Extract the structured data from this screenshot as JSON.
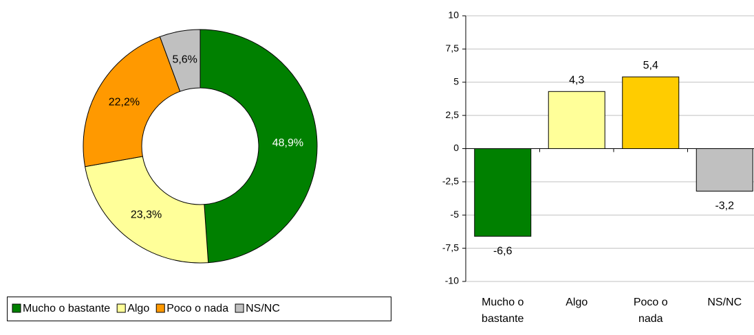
{
  "chart_data": [
    {
      "type": "donut",
      "categories": [
        "Mucho o bastante",
        "Algo",
        "Poco o nada",
        "NS/NC"
      ],
      "values": [
        48.9,
        23.3,
        22.2,
        5.6
      ],
      "value_labels": [
        "48,9%",
        "23,3%",
        "22,2%",
        "5,6%"
      ],
      "colors": [
        "#008000",
        "#ffff99",
        "#ff9900",
        "#c0c0c0"
      ],
      "legend": "bottom"
    },
    {
      "type": "bar",
      "categories": [
        "Mucho o bastante",
        "Algo",
        "Poco o nada",
        "NS/NC"
      ],
      "values": [
        -6.6,
        4.3,
        5.4,
        -3.2
      ],
      "value_labels": [
        "-6,6",
        "4,3",
        "5,4",
        "-3,2"
      ],
      "colors": [
        "#008000",
        "#ffff99",
        "#ffcc00",
        "#c0c0c0"
      ],
      "ylim": [
        -10,
        10
      ],
      "yticks": [
        -10,
        {
          "value": -7.5,
          "label": "-7,5"
        },
        -5,
        {
          "value": -2.5,
          "label": "-2,5"
        },
        0,
        {
          "value": 2.5,
          "label": "2,5"
        },
        5,
        {
          "value": 7.5,
          "label": "7,5"
        },
        10
      ],
      "grid": true
    }
  ]
}
